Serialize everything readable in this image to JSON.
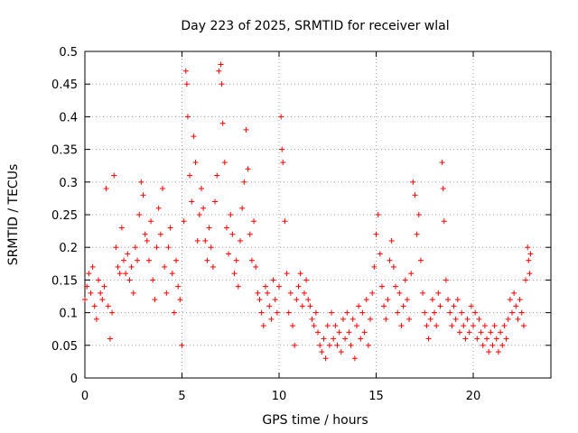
{
  "chart_data": {
    "type": "scatter",
    "title": "Day 223 of 2025, SRMTID for receiver wlal",
    "xlabel": "GPS time / hours",
    "ylabel": "SRMTID / TECUs",
    "xlim": [
      0,
      24
    ],
    "ylim": [
      0,
      0.5
    ],
    "x_ticks": [
      0,
      5,
      10,
      15,
      20
    ],
    "y_ticks": [
      0,
      0.05,
      0.1,
      0.15,
      0.2,
      0.25,
      0.3,
      0.35,
      0.4,
      0.45,
      0.5
    ],
    "x_tick_labels": [
      "0",
      "5",
      "10",
      "15",
      "20"
    ],
    "y_tick_labels": [
      "0",
      "0.05",
      "0.1",
      "0.15",
      "0.2",
      "0.25",
      "0.3",
      "0.35",
      "0.4",
      "0.45",
      "0.5"
    ],
    "grid": true,
    "marker": "+",
    "series": [
      {
        "name": "SRMTID",
        "color": "#ff0000",
        "points": [
          [
            0.0,
            0.12
          ],
          [
            0.1,
            0.14
          ],
          [
            0.2,
            0.16
          ],
          [
            0.3,
            0.13
          ],
          [
            0.4,
            0.17
          ],
          [
            0.5,
            0.11
          ],
          [
            0.6,
            0.09
          ],
          [
            0.7,
            0.15
          ],
          [
            0.8,
            0.13
          ],
          [
            0.9,
            0.12
          ],
          [
            1.0,
            0.14
          ],
          [
            1.1,
            0.29
          ],
          [
            1.2,
            0.11
          ],
          [
            1.3,
            0.06
          ],
          [
            1.4,
            0.1
          ],
          [
            1.5,
            0.31
          ],
          [
            1.6,
            0.2
          ],
          [
            1.7,
            0.17
          ],
          [
            1.8,
            0.16
          ],
          [
            1.9,
            0.23
          ],
          [
            2.0,
            0.18
          ],
          [
            2.1,
            0.16
          ],
          [
            2.2,
            0.19
          ],
          [
            2.3,
            0.15
          ],
          [
            2.4,
            0.17
          ],
          [
            2.5,
            0.13
          ],
          [
            2.6,
            0.2
          ],
          [
            2.7,
            0.18
          ],
          [
            2.8,
            0.25
          ],
          [
            2.9,
            0.3
          ],
          [
            3.0,
            0.28
          ],
          [
            3.1,
            0.22
          ],
          [
            3.2,
            0.21
          ],
          [
            3.3,
            0.18
          ],
          [
            3.4,
            0.24
          ],
          [
            3.5,
            0.15
          ],
          [
            3.6,
            0.12
          ],
          [
            3.7,
            0.2
          ],
          [
            3.8,
            0.26
          ],
          [
            3.9,
            0.22
          ],
          [
            4.0,
            0.29
          ],
          [
            4.1,
            0.17
          ],
          [
            4.2,
            0.13
          ],
          [
            4.3,
            0.2
          ],
          [
            4.4,
            0.23
          ],
          [
            4.5,
            0.16
          ],
          [
            4.6,
            0.1
          ],
          [
            4.7,
            0.18
          ],
          [
            4.8,
            0.14
          ],
          [
            4.9,
            0.12
          ],
          [
            5.0,
            0.05
          ],
          [
            5.1,
            0.24
          ],
          [
            5.2,
            0.47
          ],
          [
            5.25,
            0.45
          ],
          [
            5.3,
            0.4
          ],
          [
            5.4,
            0.31
          ],
          [
            5.5,
            0.27
          ],
          [
            5.6,
            0.37
          ],
          [
            5.7,
            0.33
          ],
          [
            5.8,
            0.21
          ],
          [
            5.9,
            0.25
          ],
          [
            6.0,
            0.29
          ],
          [
            6.1,
            0.26
          ],
          [
            6.2,
            0.21
          ],
          [
            6.3,
            0.18
          ],
          [
            6.4,
            0.23
          ],
          [
            6.5,
            0.2
          ],
          [
            6.6,
            0.17
          ],
          [
            6.7,
            0.27
          ],
          [
            6.8,
            0.31
          ],
          [
            6.9,
            0.47
          ],
          [
            7.0,
            0.48
          ],
          [
            7.05,
            0.45
          ],
          [
            7.1,
            0.39
          ],
          [
            7.2,
            0.33
          ],
          [
            7.3,
            0.23
          ],
          [
            7.4,
            0.19
          ],
          [
            7.5,
            0.25
          ],
          [
            7.6,
            0.22
          ],
          [
            7.7,
            0.16
          ],
          [
            7.8,
            0.18
          ],
          [
            7.9,
            0.14
          ],
          [
            8.0,
            0.21
          ],
          [
            8.1,
            0.26
          ],
          [
            8.2,
            0.3
          ],
          [
            8.3,
            0.38
          ],
          [
            8.4,
            0.32
          ],
          [
            8.5,
            0.22
          ],
          [
            8.6,
            0.18
          ],
          [
            8.7,
            0.24
          ],
          [
            8.8,
            0.17
          ],
          [
            8.9,
            0.13
          ],
          [
            9.0,
            0.12
          ],
          [
            9.1,
            0.1
          ],
          [
            9.2,
            0.08
          ],
          [
            9.3,
            0.14
          ],
          [
            9.4,
            0.13
          ],
          [
            9.5,
            0.11
          ],
          [
            9.6,
            0.09
          ],
          [
            9.7,
            0.15
          ],
          [
            9.8,
            0.12
          ],
          [
            9.9,
            0.1
          ],
          [
            10.0,
            0.14
          ],
          [
            10.1,
            0.4
          ],
          [
            10.15,
            0.35
          ],
          [
            10.2,
            0.33
          ],
          [
            10.3,
            0.24
          ],
          [
            10.4,
            0.16
          ],
          [
            10.5,
            0.1
          ],
          [
            10.6,
            0.13
          ],
          [
            10.7,
            0.08
          ],
          [
            10.8,
            0.05
          ],
          [
            10.9,
            0.12
          ],
          [
            11.0,
            0.14
          ],
          [
            11.1,
            0.16
          ],
          [
            11.2,
            0.11
          ],
          [
            11.3,
            0.13
          ],
          [
            11.4,
            0.15
          ],
          [
            11.5,
            0.12
          ],
          [
            11.6,
            0.11
          ],
          [
            11.7,
            0.09
          ],
          [
            11.8,
            0.08
          ],
          [
            11.9,
            0.1
          ],
          [
            12.0,
            0.07
          ],
          [
            12.1,
            0.05
          ],
          [
            12.2,
            0.04
          ],
          [
            12.3,
            0.06
          ],
          [
            12.4,
            0.03
          ],
          [
            12.5,
            0.08
          ],
          [
            12.6,
            0.05
          ],
          [
            12.7,
            0.1
          ],
          [
            12.8,
            0.06
          ],
          [
            12.9,
            0.08
          ],
          [
            13.0,
            0.05
          ],
          [
            13.1,
            0.07
          ],
          [
            13.2,
            0.04
          ],
          [
            13.3,
            0.09
          ],
          [
            13.4,
            0.06
          ],
          [
            13.5,
            0.1
          ],
          [
            13.6,
            0.07
          ],
          [
            13.7,
            0.05
          ],
          [
            13.8,
            0.09
          ],
          [
            13.9,
            0.03
          ],
          [
            14.0,
            0.08
          ],
          [
            14.1,
            0.11
          ],
          [
            14.2,
            0.06
          ],
          [
            14.3,
            0.1
          ],
          [
            14.4,
            0.07
          ],
          [
            14.5,
            0.12
          ],
          [
            14.6,
            0.05
          ],
          [
            14.7,
            0.09
          ],
          [
            14.8,
            0.13
          ],
          [
            14.9,
            0.17
          ],
          [
            15.0,
            0.22
          ],
          [
            15.1,
            0.25
          ],
          [
            15.2,
            0.19
          ],
          [
            15.3,
            0.14
          ],
          [
            15.4,
            0.11
          ],
          [
            15.5,
            0.09
          ],
          [
            15.6,
            0.12
          ],
          [
            15.7,
            0.18
          ],
          [
            15.8,
            0.21
          ],
          [
            15.9,
            0.17
          ],
          [
            16.0,
            0.14
          ],
          [
            16.1,
            0.1
          ],
          [
            16.2,
            0.13
          ],
          [
            16.3,
            0.08
          ],
          [
            16.4,
            0.11
          ],
          [
            16.5,
            0.15
          ],
          [
            16.6,
            0.12
          ],
          [
            16.7,
            0.09
          ],
          [
            16.8,
            0.16
          ],
          [
            16.9,
            0.3
          ],
          [
            17.0,
            0.28
          ],
          [
            17.1,
            0.22
          ],
          [
            17.2,
            0.25
          ],
          [
            17.3,
            0.18
          ],
          [
            17.4,
            0.13
          ],
          [
            17.5,
            0.1
          ],
          [
            17.6,
            0.08
          ],
          [
            17.7,
            0.06
          ],
          [
            17.8,
            0.09
          ],
          [
            17.9,
            0.12
          ],
          [
            18.0,
            0.1
          ],
          [
            18.1,
            0.08
          ],
          [
            18.2,
            0.13
          ],
          [
            18.3,
            0.11
          ],
          [
            18.4,
            0.33
          ],
          [
            18.45,
            0.29
          ],
          [
            18.5,
            0.24
          ],
          [
            18.6,
            0.15
          ],
          [
            18.7,
            0.12
          ],
          [
            18.8,
            0.1
          ],
          [
            18.9,
            0.08
          ],
          [
            19.0,
            0.11
          ],
          [
            19.1,
            0.09
          ],
          [
            19.2,
            0.12
          ],
          [
            19.3,
            0.07
          ],
          [
            19.4,
            0.1
          ],
          [
            19.5,
            0.08
          ],
          [
            19.6,
            0.06
          ],
          [
            19.7,
            0.09
          ],
          [
            19.8,
            0.07
          ],
          [
            19.9,
            0.11
          ],
          [
            20.0,
            0.08
          ],
          [
            20.1,
            0.1
          ],
          [
            20.2,
            0.06
          ],
          [
            20.3,
            0.09
          ],
          [
            20.4,
            0.07
          ],
          [
            20.5,
            0.05
          ],
          [
            20.6,
            0.08
          ],
          [
            20.7,
            0.06
          ],
          [
            20.8,
            0.04
          ],
          [
            20.9,
            0.07
          ],
          [
            21.0,
            0.05
          ],
          [
            21.1,
            0.08
          ],
          [
            21.2,
            0.06
          ],
          [
            21.3,
            0.04
          ],
          [
            21.4,
            0.07
          ],
          [
            21.5,
            0.05
          ],
          [
            21.6,
            0.08
          ],
          [
            21.7,
            0.06
          ],
          [
            21.8,
            0.09
          ],
          [
            21.9,
            0.12
          ],
          [
            22.0,
            0.1
          ],
          [
            22.1,
            0.13
          ],
          [
            22.2,
            0.11
          ],
          [
            22.3,
            0.09
          ],
          [
            22.4,
            0.12
          ],
          [
            22.5,
            0.1
          ],
          [
            22.6,
            0.08
          ],
          [
            22.7,
            0.15
          ],
          [
            22.8,
            0.2
          ],
          [
            22.85,
            0.18
          ],
          [
            22.9,
            0.16
          ],
          [
            22.95,
            0.19
          ]
        ]
      }
    ]
  }
}
